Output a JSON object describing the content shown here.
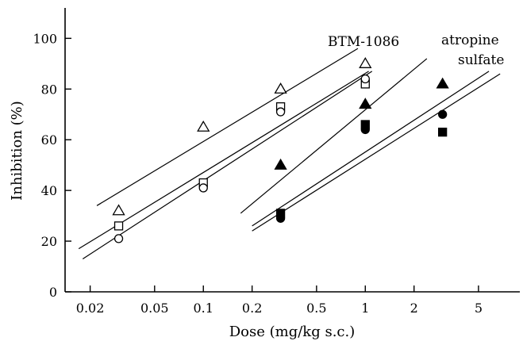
{
  "chart_data": {
    "type": "scatter",
    "xlabel": "Dose (mg/kg s.c.)",
    "ylabel": "Inhibition (%)",
    "x_scale": "log",
    "xlim": [
      0.014,
      9
    ],
    "ylim": [
      0,
      112
    ],
    "x_ticks": [
      0.02,
      0.05,
      0.1,
      0.2,
      0.5,
      1,
      2,
      5
    ],
    "x_tick_labels": [
      "0.02",
      "0.05",
      "0.1",
      "0.2",
      "0.5",
      "1",
      "2",
      "5"
    ],
    "y_ticks": [
      0,
      20,
      40,
      60,
      80,
      100
    ],
    "y_tick_labels": [
      "0",
      "20",
      "40",
      "60",
      "80",
      "100"
    ],
    "grid": false,
    "annotations": [
      {
        "text": "BTM-1086"
      },
      {
        "text": "atropine"
      },
      {
        "text": "sulfate"
      }
    ],
    "series": [
      {
        "marker": "triangle-open",
        "points": [
          [
            0.03,
            32
          ],
          [
            0.1,
            65
          ],
          [
            0.3,
            80
          ],
          [
            1,
            90
          ]
        ],
        "fit": [
          [
            0.022,
            34
          ],
          [
            0.9,
            96
          ]
        ]
      },
      {
        "marker": "square-open",
        "points": [
          [
            0.03,
            26
          ],
          [
            0.1,
            43
          ],
          [
            0.3,
            73
          ],
          [
            1,
            82
          ]
        ],
        "fit": [
          [
            0.017,
            17
          ],
          [
            1.05,
            87
          ]
        ]
      },
      {
        "marker": "circle-open",
        "points": [
          [
            0.03,
            21
          ],
          [
            0.1,
            41
          ],
          [
            0.3,
            71
          ],
          [
            1,
            84
          ]
        ],
        "fit": [
          [
            0.018,
            13
          ],
          [
            1.1,
            87
          ]
        ]
      },
      {
        "marker": "triangle-filled",
        "points": [
          [
            0.3,
            50
          ],
          [
            1,
            74
          ],
          [
            3,
            82
          ]
        ],
        "fit": [
          [
            0.17,
            31
          ],
          [
            2.4,
            92
          ]
        ]
      },
      {
        "marker": "square-filled",
        "points": [
          [
            0.3,
            31
          ],
          [
            1,
            66
          ],
          [
            3,
            63
          ]
        ],
        "fit": [
          [
            0.2,
            26
          ],
          [
            5.8,
            87
          ]
        ]
      },
      {
        "marker": "circle-filled",
        "points": [
          [
            0.3,
            29
          ],
          [
            1,
            64
          ],
          [
            3,
            70
          ]
        ],
        "fit": [
          [
            0.2,
            24
          ],
          [
            6.8,
            86
          ]
        ]
      }
    ]
  }
}
